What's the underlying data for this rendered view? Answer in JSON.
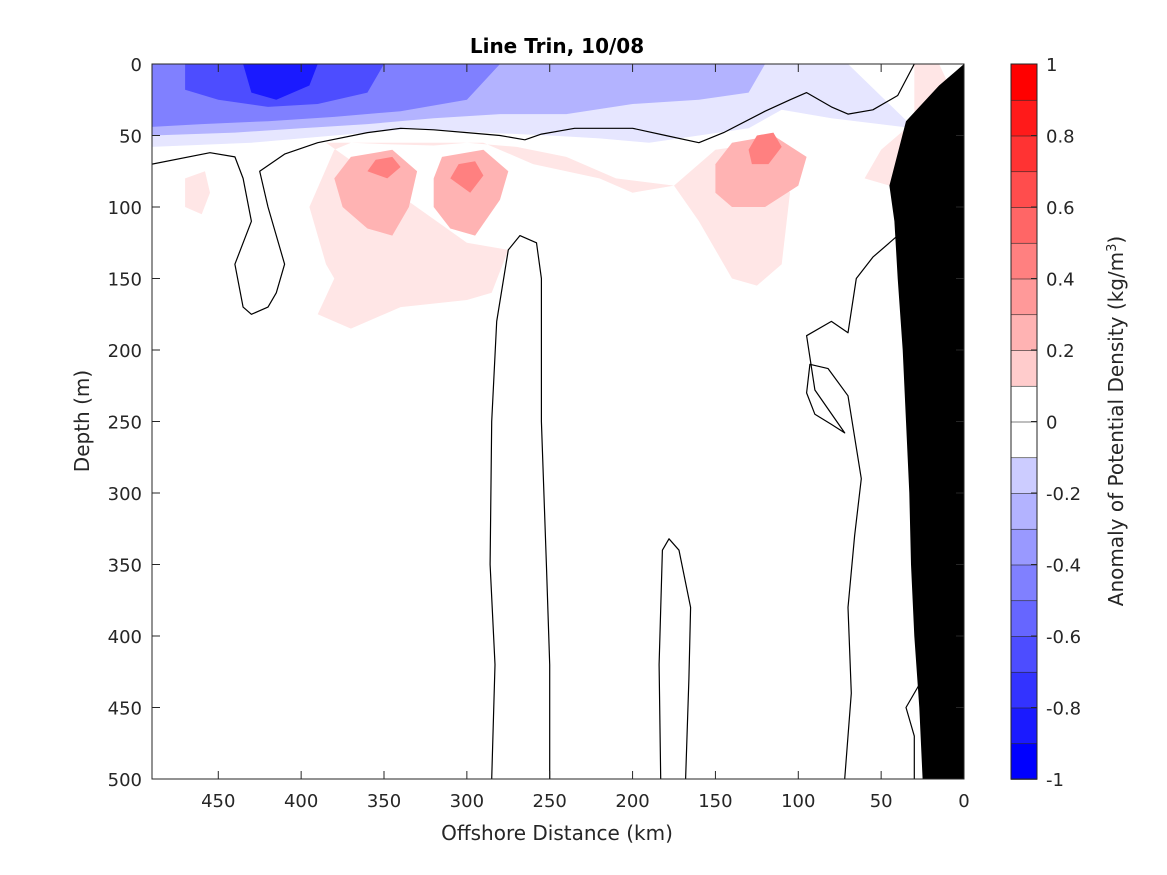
{
  "chart_data": {
    "type": "contour",
    "title": "Line Trin, 10/08",
    "xlabel": "Offshore Distance (km)",
    "ylabel": "Depth (m)",
    "xlim": [
      490,
      0
    ],
    "ylim": [
      0,
      500
    ],
    "x_reversed": true,
    "y_reversed": true,
    "x_ticks": [
      "450",
      "400",
      "350",
      "300",
      "250",
      "200",
      "150",
      "100",
      "50",
      "0"
    ],
    "x_tick_values": [
      450,
      400,
      350,
      300,
      250,
      200,
      150,
      100,
      50,
      0
    ],
    "y_ticks": [
      "0",
      "50",
      "100",
      "150",
      "200",
      "250",
      "300",
      "350",
      "400",
      "450",
      "500"
    ],
    "y_tick_values": [
      0,
      50,
      100,
      150,
      200,
      250,
      300,
      350,
      400,
      450,
      500
    ],
    "colorbar": {
      "label": "Anomaly of Potential Density (kg/m",
      "label_superscript": "3",
      "label_suffix": ")",
      "range": [
        -1,
        1
      ],
      "tick_labels": [
        "1",
        "0.8",
        "0.6",
        "0.4",
        "0.2",
        "0",
        "-0.2",
        "-0.4",
        "-0.6",
        "-0.8",
        "-1"
      ],
      "tick_values": [
        1,
        0.8,
        0.6,
        0.4,
        0.2,
        0,
        -0.2,
        -0.4,
        -0.6,
        -0.8,
        -1
      ],
      "levels": [
        -1,
        -0.9,
        -0.8,
        -0.7,
        -0.6,
        -0.5,
        -0.4,
        -0.3,
        -0.2,
        -0.1,
        0.1,
        0.2,
        0.3,
        0.4,
        0.5,
        0.6,
        0.7,
        0.8,
        0.9,
        1
      ],
      "colors": [
        "#0000ff",
        "#1a1aff",
        "#3333ff",
        "#4d4dff",
        "#6666ff",
        "#8080ff",
        "#9999ff",
        "#b3b3ff",
        "#ccccff",
        "#e6e6ff",
        "#ffffff",
        "#ffe6e6",
        "#ffcccc",
        "#ffb3b3",
        "#ff9999",
        "#ff8080",
        "#ff6666",
        "#ff4d4d",
        "#ff3333",
        "#ff1a1a",
        "#ff0000"
      ]
    },
    "filled_regions": [
      {
        "name": "surface-negative-light",
        "level": -0.1,
        "points": [
          [
            490,
            0
          ],
          [
            70,
            0
          ],
          [
            30,
            45
          ],
          [
            80,
            38
          ],
          [
            110,
            32
          ],
          [
            130,
            45
          ],
          [
            160,
            50
          ],
          [
            190,
            55
          ],
          [
            220,
            52
          ],
          [
            250,
            50
          ],
          [
            290,
            48
          ],
          [
            330,
            45
          ],
          [
            380,
            50
          ],
          [
            430,
            55
          ],
          [
            490,
            58
          ]
        ]
      },
      {
        "name": "surface-negative-moderate",
        "level": -0.3,
        "points": [
          [
            490,
            0
          ],
          [
            120,
            0
          ],
          [
            130,
            20
          ],
          [
            160,
            25
          ],
          [
            200,
            28
          ],
          [
            240,
            35
          ],
          [
            280,
            35
          ],
          [
            320,
            38
          ],
          [
            360,
            42
          ],
          [
            400,
            45
          ],
          [
            440,
            48
          ],
          [
            490,
            50
          ]
        ]
      },
      {
        "name": "surface-negative-strong",
        "level": -0.5,
        "points": [
          [
            490,
            0
          ],
          [
            280,
            0
          ],
          [
            300,
            25
          ],
          [
            340,
            33
          ],
          [
            380,
            37
          ],
          [
            420,
            40
          ],
          [
            460,
            42
          ],
          [
            490,
            44
          ]
        ]
      },
      {
        "name": "surface-negative-very-strong",
        "level": -0.7,
        "points": [
          [
            470,
            0
          ],
          [
            350,
            0
          ],
          [
            360,
            20
          ],
          [
            390,
            28
          ],
          [
            420,
            30
          ],
          [
            450,
            25
          ],
          [
            470,
            18
          ]
        ]
      },
      {
        "name": "surface-negative-core",
        "level": -0.9,
        "points": [
          [
            435,
            0
          ],
          [
            390,
            0
          ],
          [
            395,
            15
          ],
          [
            415,
            25
          ],
          [
            430,
            20
          ]
        ]
      },
      {
        "name": "positive-lobe-west",
        "level": 0.1,
        "points": [
          [
            385,
            55
          ],
          [
            340,
            55
          ],
          [
            290,
            55
          ],
          [
            260,
            70
          ],
          [
            240,
            75
          ],
          [
            220,
            80
          ],
          [
            200,
            90
          ],
          [
            175,
            85
          ],
          [
            160,
            110
          ],
          [
            140,
            150
          ],
          [
            125,
            155
          ],
          [
            110,
            140
          ],
          [
            105,
            90
          ],
          [
            115,
            70
          ],
          [
            120,
            55
          ],
          [
            150,
            60
          ],
          [
            175,
            85
          ],
          [
            210,
            80
          ],
          [
            240,
            65
          ],
          [
            270,
            58
          ],
          [
            300,
            55
          ],
          [
            320,
            57
          ],
          [
            350,
            56
          ],
          [
            370,
            55
          ],
          [
            380,
            60
          ],
          [
            395,
            100
          ],
          [
            385,
            140
          ],
          [
            380,
            150
          ],
          [
            390,
            175
          ],
          [
            370,
            185
          ],
          [
            340,
            170
          ],
          [
            300,
            165
          ],
          [
            285,
            160
          ],
          [
            275,
            130
          ],
          [
            300,
            125
          ]
        ]
      },
      {
        "name": "positive-lobe-east-near-shore",
        "level": 0.1,
        "points": [
          [
            30,
            0
          ],
          [
            15,
            0
          ],
          [
            5,
            25
          ],
          [
            0,
            55
          ],
          [
            5,
            90
          ],
          [
            45,
            85
          ],
          [
            60,
            80
          ],
          [
            50,
            60
          ],
          [
            30,
            40
          ]
        ]
      },
      {
        "name": "positive-lobe-far-west",
        "level": 0.1,
        "points": [
          [
            470,
            80
          ],
          [
            458,
            75
          ],
          [
            455,
            90
          ],
          [
            460,
            105
          ],
          [
            470,
            100
          ]
        ]
      },
      {
        "name": "positive-core-350",
        "level": 0.3,
        "points": [
          [
            380,
            80
          ],
          [
            370,
            65
          ],
          [
            345,
            60
          ],
          [
            330,
            75
          ],
          [
            335,
            100
          ],
          [
            345,
            120
          ],
          [
            360,
            115
          ],
          [
            375,
            100
          ]
        ]
      },
      {
        "name": "positive-core-300",
        "level": 0.3,
        "points": [
          [
            320,
            80
          ],
          [
            315,
            65
          ],
          [
            290,
            60
          ],
          [
            275,
            75
          ],
          [
            280,
            95
          ],
          [
            295,
            120
          ],
          [
            310,
            115
          ],
          [
            320,
            100
          ]
        ]
      },
      {
        "name": "positive-core-130",
        "level": 0.3,
        "points": [
          [
            150,
            70
          ],
          [
            140,
            55
          ],
          [
            115,
            50
          ],
          [
            95,
            65
          ],
          [
            100,
            85
          ],
          [
            120,
            100
          ],
          [
            140,
            100
          ],
          [
            150,
            90
          ]
        ]
      },
      {
        "name": "positive-peak-350",
        "level": 0.5,
        "points": [
          [
            360,
            75
          ],
          [
            355,
            67
          ],
          [
            345,
            65
          ],
          [
            340,
            72
          ],
          [
            348,
            80
          ]
        ]
      },
      {
        "name": "positive-peak-300",
        "level": 0.5,
        "points": [
          [
            310,
            80
          ],
          [
            305,
            70
          ],
          [
            295,
            68
          ],
          [
            290,
            78
          ],
          [
            298,
            90
          ]
        ]
      },
      {
        "name": "positive-peak-130",
        "level": 0.5,
        "points": [
          [
            130,
            60
          ],
          [
            125,
            50
          ],
          [
            115,
            48
          ],
          [
            110,
            58
          ],
          [
            118,
            70
          ],
          [
            128,
            70
          ]
        ]
      },
      {
        "name": "positive-peak-nearshore",
        "level": 0.5,
        "points": [
          [
            15,
            20
          ],
          [
            10,
            10
          ],
          [
            5,
            15
          ],
          [
            3,
            30
          ],
          [
            10,
            35
          ]
        ]
      }
    ],
    "zero_contours": [
      {
        "name": "zero-contour-surface",
        "points": [
          [
            490,
            70
          ],
          [
            455,
            62
          ],
          [
            440,
            65
          ],
          [
            435,
            80
          ],
          [
            430,
            110
          ],
          [
            440,
            140
          ],
          [
            435,
            170
          ],
          [
            430,
            175
          ],
          [
            420,
            170
          ],
          [
            415,
            160
          ],
          [
            410,
            140
          ],
          [
            420,
            100
          ],
          [
            425,
            75
          ],
          [
            410,
            63
          ],
          [
            390,
            55
          ],
          [
            360,
            48
          ],
          [
            340,
            45
          ],
          [
            320,
            46
          ],
          [
            300,
            48
          ],
          [
            280,
            50
          ],
          [
            265,
            53
          ],
          [
            255,
            49
          ],
          [
            235,
            45
          ],
          [
            200,
            45
          ],
          [
            180,
            50
          ],
          [
            160,
            55
          ],
          [
            145,
            48
          ],
          [
            120,
            33
          ],
          [
            105,
            25
          ],
          [
            95,
            20
          ],
          [
            80,
            30
          ],
          [
            70,
            35
          ],
          [
            55,
            32
          ],
          [
            40,
            22
          ],
          [
            30,
            0
          ]
        ]
      },
      {
        "name": "zero-contour-column-west",
        "points": [
          [
            285,
            500
          ],
          [
            283,
            420
          ],
          [
            286,
            350
          ],
          [
            285,
            250
          ],
          [
            282,
            180
          ],
          [
            275,
            130
          ],
          [
            268,
            120
          ],
          [
            258,
            125
          ],
          [
            255,
            150
          ],
          [
            255,
            250
          ],
          [
            252,
            350
          ],
          [
            250,
            420
          ],
          [
            250,
            500
          ]
        ]
      },
      {
        "name": "zero-contour-column-middle",
        "points": [
          [
            183,
            500
          ],
          [
            184,
            420
          ],
          [
            182,
            340
          ],
          [
            178,
            332
          ],
          [
            172,
            340
          ],
          [
            165,
            380
          ],
          [
            166,
            430
          ],
          [
            168,
            500
          ]
        ]
      },
      {
        "name": "zero-contour-nearshore",
        "points": [
          [
            72,
            500
          ],
          [
            68,
            440
          ],
          [
            70,
            380
          ],
          [
            66,
            330
          ],
          [
            62,
            290
          ],
          [
            70,
            232
          ],
          [
            82,
            213
          ],
          [
            93,
            210
          ],
          [
            95,
            230
          ],
          [
            90,
            245
          ],
          [
            80,
            252
          ],
          [
            72,
            258
          ],
          [
            90,
            228
          ],
          [
            95,
            190
          ],
          [
            80,
            180
          ],
          [
            70,
            188
          ],
          [
            65,
            150
          ],
          [
            55,
            135
          ],
          [
            40,
            120
          ],
          [
            25,
            118
          ],
          [
            10,
            120
          ]
        ]
      },
      {
        "name": "zero-contour-shelf",
        "points": [
          [
            30,
            500
          ],
          [
            30,
            470
          ],
          [
            35,
            450
          ],
          [
            20,
            420
          ],
          [
            10,
            400
          ]
        ]
      }
    ],
    "bathymetry": {
      "name": "shelf-bottom",
      "color": "#000000",
      "points": [
        [
          0,
          0
        ],
        [
          0,
          500
        ],
        [
          25,
          500
        ],
        [
          27,
          450
        ],
        [
          30,
          400
        ],
        [
          32,
          350
        ],
        [
          33,
          300
        ],
        [
          35,
          250
        ],
        [
          37,
          200
        ],
        [
          40,
          150
        ],
        [
          42,
          110
        ],
        [
          45,
          85
        ],
        [
          35,
          40
        ],
        [
          15,
          15
        ],
        [
          5,
          5
        ]
      ]
    }
  }
}
